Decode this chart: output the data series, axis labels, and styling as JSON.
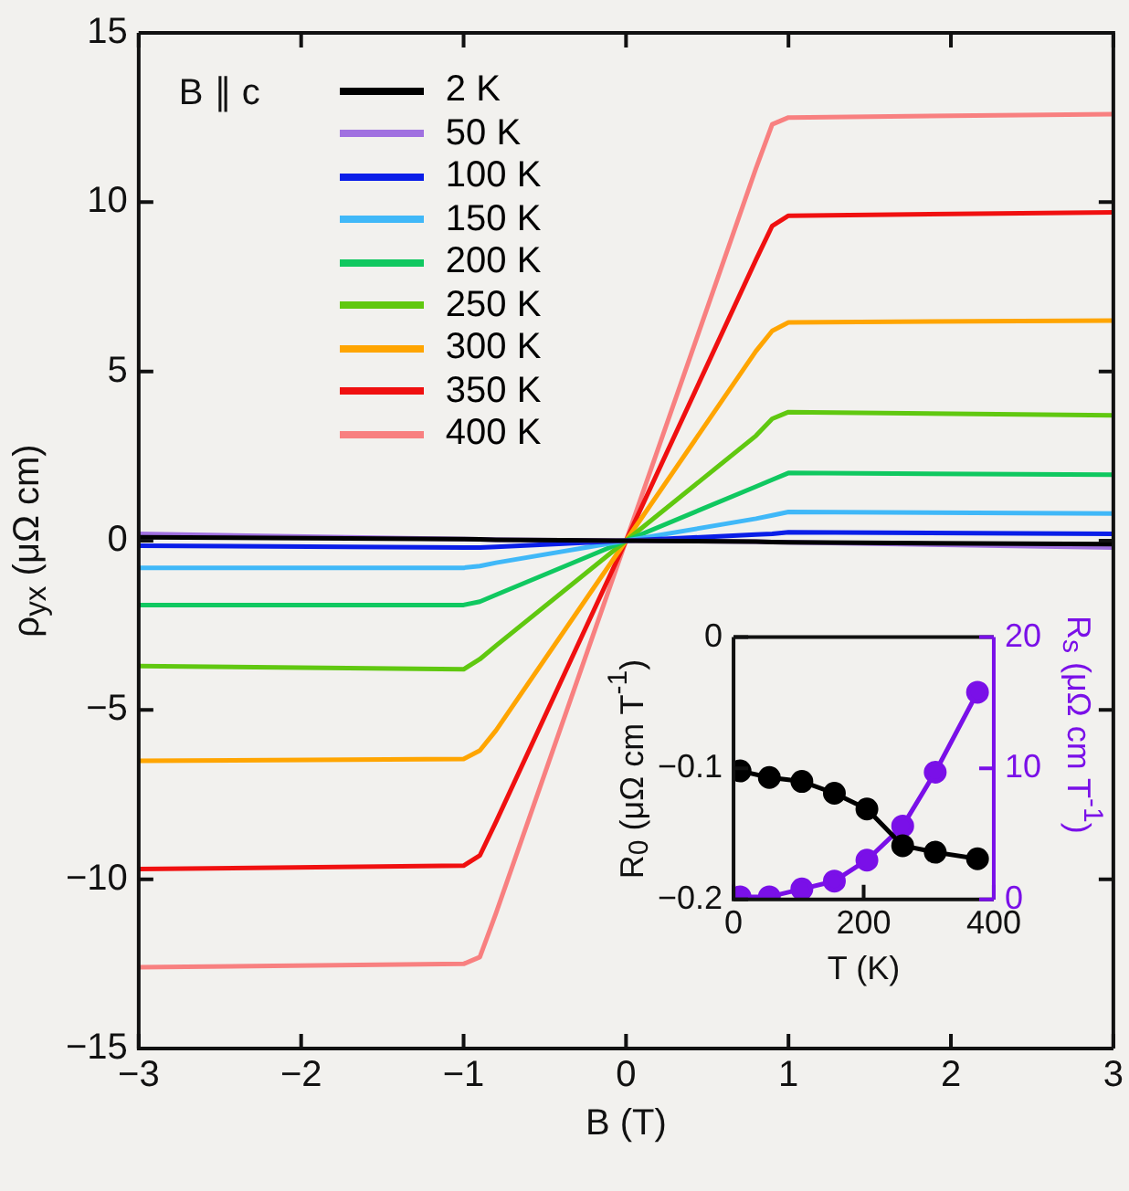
{
  "chart_data": [
    {
      "type": "line",
      "xlabel": "B (T)",
      "ylabel": "ρ$_{yx}$ (μΩ cm)",
      "annotations": [
        "B ∥ c"
      ],
      "x": [
        -3,
        -1,
        -0.9,
        -0.8,
        0,
        0.8,
        0.9,
        1,
        3
      ],
      "series": [
        {
          "name": "2 K",
          "color": "#000000",
          "values": [
            0.1,
            0.05,
            0.04,
            0.03,
            0,
            -0.03,
            -0.04,
            -0.05,
            -0.1
          ]
        },
        {
          "name": "50 K",
          "color": "#a070e0",
          "values": [
            0.2,
            0.05,
            0.04,
            0.03,
            0,
            -0.03,
            -0.04,
            -0.05,
            -0.2
          ]
        },
        {
          "name": "100 K",
          "color": "#0a1ee8",
          "values": [
            -0.15,
            -0.2,
            -0.2,
            -0.18,
            0,
            0.18,
            0.2,
            0.25,
            0.2
          ]
        },
        {
          "name": "150 K",
          "color": "#40b8f8",
          "values": [
            -0.8,
            -0.8,
            -0.75,
            -0.65,
            0,
            0.65,
            0.75,
            0.85,
            0.8
          ]
        },
        {
          "name": "200 K",
          "color": "#10c860",
          "values": [
            -1.9,
            -1.9,
            -1.8,
            -1.6,
            0,
            1.6,
            1.8,
            2.0,
            1.95
          ]
        },
        {
          "name": "250 K",
          "color": "#60c810",
          "values": [
            -3.7,
            -3.8,
            -3.5,
            -3.1,
            0,
            3.1,
            3.6,
            3.8,
            3.7
          ]
        },
        {
          "name": "300 K",
          "color": "#ffa500",
          "values": [
            -6.5,
            -6.45,
            -6.2,
            -5.6,
            0,
            5.6,
            6.2,
            6.45,
            6.5
          ]
        },
        {
          "name": "350 K",
          "color": "#f01010",
          "values": [
            -9.7,
            -9.6,
            -9.3,
            -8.3,
            0,
            8.3,
            9.3,
            9.6,
            9.7
          ]
        },
        {
          "name": "400 K",
          "color": "#f88080",
          "values": [
            -12.6,
            -12.5,
            -12.3,
            -11.0,
            0,
            11.0,
            12.3,
            12.5,
            12.6
          ]
        }
      ],
      "xlim": [
        -3,
        3
      ],
      "xticks": [
        {
          "value": -3,
          "label": "−3"
        },
        {
          "value": -2,
          "label": "−2"
        },
        {
          "value": -1,
          "label": "−1"
        },
        0,
        1,
        2,
        3
      ],
      "ylim": [
        -15,
        15
      ],
      "yticks": [
        {
          "value": -15,
          "label": "−15"
        },
        {
          "value": -10,
          "label": "−10"
        },
        {
          "value": -5,
          "label": "−5"
        },
        0,
        5,
        10,
        15
      ],
      "grid": false,
      "legend": "top left",
      "marker": "none",
      "line_style": "solid"
    },
    {
      "type": "line",
      "xlabel": "T (K)",
      "ylabel": "R$_{0}$ (μΩ cm T$^{-1}$)",
      "y2label": "R$_{s}$ (μΩ cm T$^{-1}$)",
      "x": [
        10,
        55,
        105,
        155,
        205,
        260,
        310,
        375
      ],
      "series": [
        {
          "color": "#000000",
          "values": [
            -0.102,
            -0.107,
            -0.11,
            -0.119,
            -0.131,
            -0.159,
            -0.164,
            -0.169
          ]
        },
        {
          "color": "#7a10e8",
          "axis": "y2",
          "values": [
            0.2,
            0.2,
            0.8,
            1.4,
            3.0,
            5.6,
            9.7,
            15.8
          ]
        }
      ],
      "xlim": [
        0,
        400
      ],
      "xticks": [
        0,
        200,
        400
      ],
      "ylim": [
        -0.2,
        0
      ],
      "yticks": [
        {
          "value": -0.2,
          "label": "−0.2"
        },
        {
          "value": -0.1,
          "label": "−0.1"
        },
        0
      ],
      "y2lim": [
        0,
        20
      ],
      "y2ticks": [
        0,
        10,
        20
      ],
      "grid": false,
      "legend": false,
      "marker": "circle",
      "line_style": "solid"
    }
  ]
}
